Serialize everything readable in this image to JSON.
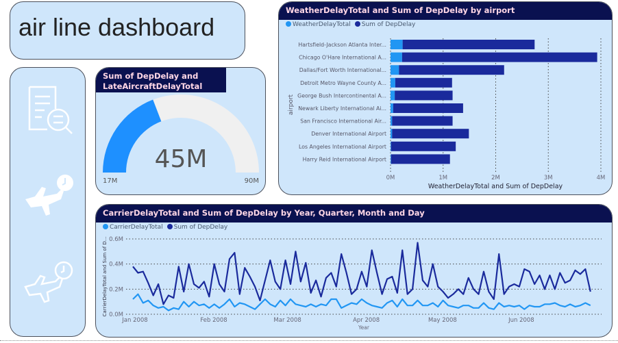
{
  "header": {
    "title": "air line dashboard"
  },
  "nav": {
    "icons": [
      "report-search-icon",
      "flight-delay-clock-icon",
      "flight-departure-clock-icon"
    ]
  },
  "gauge": {
    "title": "Sum of DepDelay and LateAircraftDelayTotal",
    "value": 45,
    "value_label": "45M",
    "min": 17,
    "min_label": "17M",
    "max": 90,
    "max_label": "90M",
    "fill_color": "#1e90ff",
    "track_color": "#f0f0f0"
  },
  "colors": {
    "light": "#2196f3",
    "dark": "#1a2a9c",
    "header_bg": "#0a1150",
    "panel_bg": "#cfe6fb"
  },
  "chart_data": [
    {
      "type": "bar",
      "orientation": "horizontal-stacked",
      "title": "WeatherDelayTotal and Sum of DepDelay by airport",
      "xlabel": "WeatherDelayTotal and Sum of DepDelay",
      "ylabel": "airport",
      "xlim": [
        0,
        4000000
      ],
      "xticks": [
        "0M",
        "1M",
        "2M",
        "3M",
        "4M"
      ],
      "grid": true,
      "legend": "top-left",
      "categories": [
        "Hartsfield-Jackson Atlanta Inter...",
        "Chicago O'Hare International A...",
        "Dallas/Fort Worth International...",
        "Detroit Metro Wayne County A...",
        "George Bush Intercontinental A...",
        "Newark Liberty International Ai...",
        "San Francisco International Air...",
        "Denver International Airport",
        "Los Angeles International Airport",
        "Harry Reid International Airport"
      ],
      "series": [
        {
          "name": "WeatherDelayTotal",
          "color": "#2196f3",
          "values": [
            230000,
            220000,
            160000,
            90000,
            80000,
            50000,
            30000,
            30000,
            10000,
            10000
          ]
        },
        {
          "name": "Sum of DepDelay",
          "color": "#1a2a9c",
          "values": [
            2510000,
            3710000,
            2000000,
            1080000,
            1100000,
            1330000,
            1150000,
            1460000,
            1230000,
            1120000
          ]
        }
      ]
    },
    {
      "type": "line",
      "title": "CarrierDelayTotal and Sum of DepDelay by Year, Quarter, Month and Day",
      "xlabel": "Year",
      "ylabel": "CarrierDelayTotal and Sum of D...",
      "ylim": [
        0,
        600000
      ],
      "yticks": [
        "0.0M",
        "0.2M",
        "0.4M",
        "0.6M"
      ],
      "xticks": [
        {
          "label": "Jan 2008",
          "date": "2008-01-01"
        },
        {
          "label": "Feb 2008",
          "date": "2008-02-01"
        },
        {
          "label": "Mar 2008",
          "date": "2008-03-01"
        },
        {
          "label": "Apr 2008",
          "date": "2008-04-01"
        },
        {
          "label": "May 2008",
          "date": "2008-05-01"
        },
        {
          "label": "Jun 2008",
          "date": "2008-06-01"
        }
      ],
      "grid": true,
      "legend": "top-left",
      "x": [
        "2008-01-01",
        "2008-01-03",
        "2008-01-05",
        "2008-01-07",
        "2008-01-09",
        "2008-01-11",
        "2008-01-13",
        "2008-01-15",
        "2008-01-17",
        "2008-01-19",
        "2008-01-21",
        "2008-01-23",
        "2008-01-25",
        "2008-01-27",
        "2008-01-29",
        "2008-01-31",
        "2008-02-02",
        "2008-02-04",
        "2008-02-06",
        "2008-02-08",
        "2008-02-10",
        "2008-02-12",
        "2008-02-14",
        "2008-02-16",
        "2008-02-18",
        "2008-02-20",
        "2008-02-22",
        "2008-02-24",
        "2008-02-26",
        "2008-02-28",
        "2008-03-01",
        "2008-03-03",
        "2008-03-05",
        "2008-03-07",
        "2008-03-09",
        "2008-03-11",
        "2008-03-13",
        "2008-03-15",
        "2008-03-17",
        "2008-03-19",
        "2008-03-21",
        "2008-03-23",
        "2008-03-25",
        "2008-03-27",
        "2008-03-29",
        "2008-03-31",
        "2008-04-02",
        "2008-04-04",
        "2008-04-06",
        "2008-04-08",
        "2008-04-10",
        "2008-04-12",
        "2008-04-14",
        "2008-04-16",
        "2008-04-18",
        "2008-04-20",
        "2008-04-22",
        "2008-04-24",
        "2008-04-26",
        "2008-04-28",
        "2008-04-30",
        "2008-05-02",
        "2008-05-04",
        "2008-05-06",
        "2008-05-08",
        "2008-05-10",
        "2008-05-12",
        "2008-05-14",
        "2008-05-16",
        "2008-05-18",
        "2008-05-20",
        "2008-05-22",
        "2008-05-24",
        "2008-05-26",
        "2008-05-28",
        "2008-05-30",
        "2008-06-01",
        "2008-06-03",
        "2008-06-05",
        "2008-06-07",
        "2008-06-09",
        "2008-06-11",
        "2008-06-13",
        "2008-06-15",
        "2008-06-17",
        "2008-06-19",
        "2008-06-21",
        "2008-06-23",
        "2008-06-25",
        "2008-06-27",
        "2008-06-29"
      ],
      "series": [
        {
          "name": "CarrierDelayTotal",
          "color": "#2196f3",
          "values": [
            120000,
            160000,
            90000,
            110000,
            70000,
            50000,
            60000,
            30000,
            50000,
            40000,
            100000,
            60000,
            100000,
            70000,
            80000,
            50000,
            80000,
            50000,
            80000,
            120000,
            60000,
            90000,
            80000,
            60000,
            40000,
            80000,
            120000,
            80000,
            60000,
            110000,
            70000,
            120000,
            80000,
            70000,
            60000,
            80000,
            60000,
            80000,
            70000,
            120000,
            120000,
            50000,
            70000,
            90000,
            80000,
            120000,
            90000,
            70000,
            60000,
            50000,
            90000,
            110000,
            60000,
            120000,
            70000,
            70000,
            110000,
            70000,
            70000,
            90000,
            60000,
            110000,
            70000,
            60000,
            50000,
            70000,
            70000,
            50000,
            50000,
            90000,
            50000,
            40000,
            90000,
            60000,
            70000,
            60000,
            70000,
            40000,
            70000,
            60000,
            60000,
            80000,
            80000,
            90000,
            70000,
            60000,
            80000,
            60000,
            70000,
            90000,
            70000
          ]
        },
        {
          "name": "Sum of DepDelay",
          "color": "#1a2a9c",
          "values": [
            380000,
            330000,
            340000,
            250000,
            150000,
            240000,
            80000,
            150000,
            130000,
            380000,
            180000,
            400000,
            240000,
            210000,
            260000,
            140000,
            400000,
            240000,
            180000,
            440000,
            490000,
            160000,
            370000,
            300000,
            220000,
            110000,
            270000,
            430000,
            260000,
            200000,
            430000,
            240000,
            500000,
            260000,
            410000,
            170000,
            270000,
            140000,
            290000,
            330000,
            220000,
            480000,
            330000,
            160000,
            200000,
            340000,
            220000,
            510000,
            330000,
            160000,
            280000,
            300000,
            170000,
            510000,
            160000,
            200000,
            570000,
            270000,
            220000,
            400000,
            220000,
            180000,
            130000,
            160000,
            200000,
            160000,
            290000,
            200000,
            160000,
            340000,
            180000,
            120000,
            480000,
            160000,
            220000,
            240000,
            220000,
            360000,
            340000,
            240000,
            310000,
            200000,
            310000,
            200000,
            330000,
            250000,
            270000,
            350000,
            320000,
            360000,
            180000
          ]
        }
      ]
    }
  ]
}
